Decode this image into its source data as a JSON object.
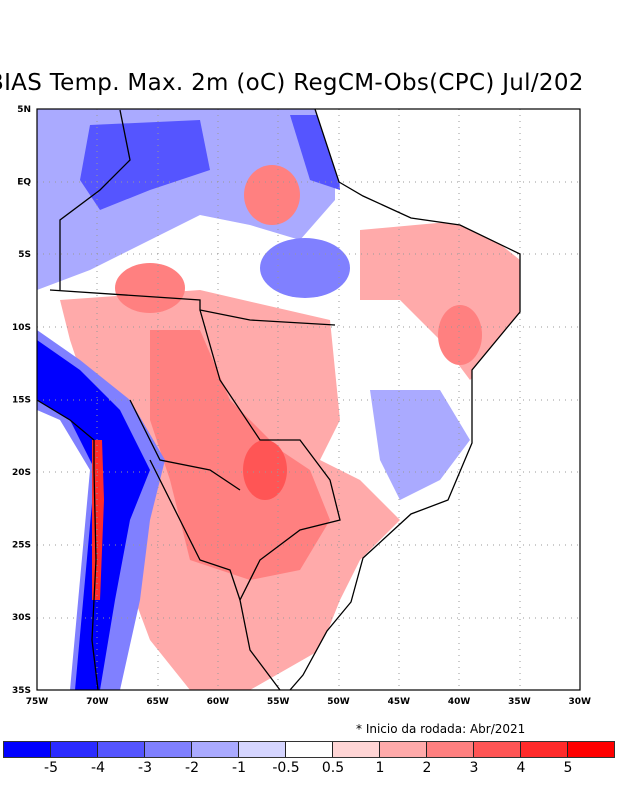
{
  "title": "BIAS Temp. Max. 2m (oC) RegCM-Obs(CPC) Jul/202",
  "note": "* Inicio da rodada: Abr/2021",
  "lon_labels": [
    "75W",
    "70W",
    "65W",
    "60W",
    "55W",
    "50W",
    "45W",
    "40W",
    "35W",
    "30W"
  ],
  "lat_labels": [
    "5N",
    "EQ",
    "5S",
    "10S",
    "15S",
    "20S",
    "25S",
    "30S",
    "35S"
  ],
  "colorbar": {
    "colors": [
      "#0000ff",
      "#2b2bff",
      "#5555ff",
      "#8080ff",
      "#aaaaff",
      "#d5d5ff",
      "#ffffff",
      "#ffd5d5",
      "#ffaaaa",
      "#ff8080",
      "#ff5555",
      "#ff2b2b",
      "#ff0000"
    ],
    "labels": [
      "-5",
      "-4",
      "-3",
      "-2",
      "-1",
      "-0.5",
      "0.5",
      "1",
      "2",
      "3",
      "4",
      "5"
    ]
  }
}
